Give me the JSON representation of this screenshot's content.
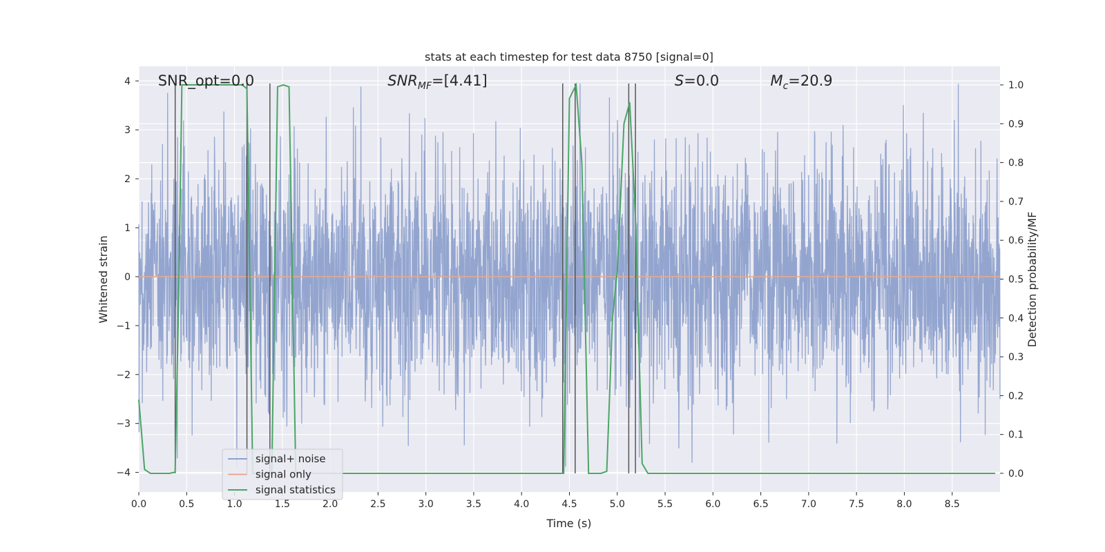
{
  "chart_data": {
    "type": "line",
    "title": "stats at each timestep for test data 8750 [signal=0]",
    "xlabel": "Time (s)",
    "ylabel": "Whitened strain",
    "y2label": "Detection probability/MF",
    "xlim": [
      0,
      9.0
    ],
    "ylim": [
      -4.4,
      4.3
    ],
    "y2lim": [
      -0.048,
      1.048
    ],
    "xticks": [
      0.0,
      0.5,
      1.0,
      1.5,
      2.0,
      2.5,
      3.0,
      3.5,
      4.0,
      4.5,
      5.0,
      5.5,
      6.0,
      6.5,
      7.0,
      7.5,
      8.0,
      8.5
    ],
    "xtick_labels": [
      "0.0",
      "0.5",
      "1.0",
      "1.5",
      "2.0",
      "2.5",
      "3.0",
      "3.5",
      "4.0",
      "4.5",
      "5.0",
      "5.5",
      "6.0",
      "6.5",
      "7.0",
      "7.5",
      "8.0",
      "8.5"
    ],
    "yticks": [
      4,
      3,
      2,
      1,
      0,
      -1,
      -2,
      -3,
      -4
    ],
    "ytick_labels": [
      "4",
      "3",
      "2",
      "1",
      "0",
      "−1",
      "−2",
      "−3",
      "−4"
    ],
    "y2ticks": [
      1.0,
      0.9,
      0.8,
      0.7,
      0.6,
      0.5,
      0.4,
      0.3,
      0.2,
      0.1,
      0.0
    ],
    "y2tick_labels": [
      "1.0",
      "0.9",
      "0.8",
      "0.7",
      "0.6",
      "0.5",
      "0.4",
      "0.3",
      "0.2",
      "0.1",
      "0.0"
    ],
    "grid": true,
    "legend_position": "lower-left",
    "annotations": [
      {
        "main": "SNR_opt=0.0",
        "x": 0.2
      },
      {
        "main": "SNR",
        "sub": "MF",
        "rest": "=[4.41]",
        "italic": true,
        "x": 2.6
      },
      {
        "main": "S",
        "rest": "=0.0",
        "italic": true,
        "x": 5.6
      },
      {
        "main": "M",
        "sub": "c",
        "rest": "=20.9",
        "italic": true,
        "x": 6.6
      }
    ],
    "series": [
      {
        "name": "signal+ noise",
        "color": "#8ea1cc",
        "kind": "noise",
        "duration": 9.0,
        "envelope_sigma": 1.2,
        "max_abs": 3.95
      },
      {
        "name": "signal only",
        "color": "#e8a88f",
        "kind": "line",
        "x": [
          0.0,
          9.0
        ],
        "y": [
          0.0,
          0.0
        ]
      },
      {
        "name": "signal statistics",
        "color": "#4aa564",
        "kind": "line",
        "axis": "y2",
        "x": [
          0.0,
          0.06,
          0.12,
          0.25,
          0.32,
          0.38,
          0.42,
          0.45,
          0.6,
          0.8,
          1.0,
          1.08,
          1.13,
          1.19,
          1.25,
          1.33,
          1.39,
          1.45,
          1.51,
          1.57,
          1.64,
          1.7,
          2.0,
          3.0,
          4.0,
          4.44,
          4.5,
          4.57,
          4.63,
          4.7,
          4.76,
          4.83,
          4.89,
          4.95,
          5.0,
          5.07,
          5.13,
          5.19,
          5.26,
          5.32,
          5.39,
          5.45,
          6.0,
          7.0,
          8.0,
          8.95
        ],
        "y": [
          0.19,
          0.01,
          0.0,
          0.0,
          0.0,
          0.003,
          0.5,
          1.0,
          1.0,
          1.0,
          1.0,
          1.0,
          0.99,
          0.0,
          0.0,
          0.0,
          0.0,
          0.995,
          1.0,
          0.995,
          0.0,
          0.0,
          0.0,
          0.0,
          0.0,
          0.0,
          0.965,
          1.0,
          0.8,
          0.0,
          0.0,
          0.0,
          0.005,
          0.4,
          0.52,
          0.9,
          0.955,
          0.66,
          0.025,
          0.0,
          0.0,
          0.0,
          0.0,
          0.0,
          0.0,
          0.0
        ]
      }
    ],
    "vertical_markers": [
      0.38,
      1.13,
      1.37,
      4.43,
      4.56,
      5.12,
      5.19
    ]
  }
}
